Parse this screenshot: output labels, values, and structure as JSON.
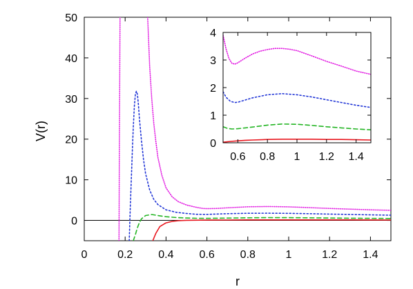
{
  "chart_data": [
    {
      "type": "line",
      "title": "",
      "xlabel": "r",
      "ylabel": "V(r)",
      "xlim": [
        0,
        1.5
      ],
      "ylim": [
        -5,
        50
      ],
      "x_ticks": [
        0,
        0.2,
        0.4,
        0.6,
        0.8,
        1,
        1.2,
        1.4
      ],
      "x_tick_labels": [
        "0",
        "0.2",
        "0.4",
        "0.6",
        "0.8",
        "1",
        "1.2",
        "1.4"
      ],
      "y_ticks": [
        0,
        10,
        20,
        30,
        40,
        50
      ],
      "y_tick_labels": [
        "0",
        "10",
        "20",
        "30",
        "40",
        "50"
      ],
      "reference_line_y": 0,
      "grid": false,
      "series": [
        {
          "color": "#e8141c",
          "dash": "solid",
          "x": [
            0.335,
            0.35,
            0.37,
            0.4,
            0.43,
            0.46,
            0.5,
            0.6,
            0.7,
            0.8,
            0.9,
            1.0,
            1.1,
            1.2,
            1.3,
            1.4,
            1.5
          ],
          "y": [
            -5,
            -3.2,
            -1.5,
            -0.6,
            -0.25,
            -0.08,
            0.02,
            0.08,
            0.1,
            0.12,
            0.13,
            0.13,
            0.13,
            0.12,
            0.12,
            0.11,
            0.1
          ]
        },
        {
          "color": "#22b422",
          "dash": "6,4",
          "x": [
            0.24,
            0.25,
            0.26,
            0.27,
            0.28,
            0.3,
            0.33,
            0.36,
            0.4,
            0.45,
            0.5,
            0.55,
            0.6,
            0.7,
            0.8,
            0.9,
            1.0,
            1.1,
            1.2,
            1.3,
            1.4,
            1.5
          ],
          "y": [
            -5,
            -3.5,
            -1.8,
            -0.5,
            0.4,
            1.2,
            1.45,
            1.2,
            0.9,
            0.7,
            0.58,
            0.52,
            0.5,
            0.56,
            0.64,
            0.68,
            0.67,
            0.63,
            0.58,
            0.54,
            0.5,
            0.47
          ]
        },
        {
          "color": "#1f34d6",
          "dash": "2,3",
          "x": [
            0.22,
            0.225,
            0.23,
            0.235,
            0.24,
            0.245,
            0.25,
            0.255,
            0.26,
            0.265,
            0.27,
            0.28,
            0.29,
            0.3,
            0.32,
            0.34,
            0.36,
            0.4,
            0.45,
            0.5,
            0.55,
            0.6,
            0.7,
            0.8,
            0.9,
            1.0,
            1.1,
            1.2,
            1.3,
            1.4,
            1.5
          ],
          "y": [
            -5,
            3,
            10,
            17,
            23,
            28,
            31,
            31.8,
            31,
            28.5,
            25,
            19.5,
            15,
            11.5,
            7.5,
            5.2,
            3.9,
            2.6,
            2.0,
            1.7,
            1.5,
            1.48,
            1.65,
            1.76,
            1.78,
            1.74,
            1.66,
            1.56,
            1.46,
            1.36,
            1.28
          ]
        },
        {
          "color": "#e21ee2",
          "dash": "1,2",
          "x": [
            0.17,
            0.172,
            0.175
          ],
          "y": [
            -5,
            20,
            50
          ],
          "x2": [
            0.31,
            0.32,
            0.33,
            0.34,
            0.35,
            0.36,
            0.38,
            0.4,
            0.43,
            0.46,
            0.5,
            0.55,
            0.58,
            0.6,
            0.65,
            0.7,
            0.8,
            0.9,
            1.0,
            1.1,
            1.2,
            1.3,
            1.4,
            1.5
          ],
          "y2": [
            50,
            38,
            30,
            24,
            19.5,
            15.5,
            11,
            8,
            5.8,
            4.6,
            3.8,
            3.2,
            2.95,
            2.9,
            2.95,
            3.1,
            3.35,
            3.42,
            3.33,
            3.15,
            2.95,
            2.78,
            2.6,
            2.48
          ]
        }
      ]
    },
    {
      "type": "line",
      "title": "",
      "xlabel": "",
      "ylabel": "",
      "xlim": [
        0.5,
        1.5
      ],
      "ylim": [
        0,
        4
      ],
      "x_ticks": [
        0.6,
        0.8,
        1,
        1.2,
        1.4
      ],
      "x_tick_labels": [
        "0.6",
        "0.8",
        "1",
        "1.2",
        "1.4"
      ],
      "y_ticks": [
        0,
        1,
        2,
        3,
        4
      ],
      "y_tick_labels": [
        "0",
        "1",
        "2",
        "3",
        "4"
      ],
      "grid": false,
      "series": [
        {
          "color": "#e8141c",
          "dash": "solid",
          "x": [
            0.5,
            0.55,
            0.6,
            0.65,
            0.7,
            0.8,
            0.9,
            1.0,
            1.1,
            1.2,
            1.3,
            1.4,
            1.5
          ],
          "y": [
            0.02,
            0.05,
            0.07,
            0.09,
            0.1,
            0.12,
            0.13,
            0.13,
            0.13,
            0.12,
            0.12,
            0.11,
            0.1
          ]
        },
        {
          "color": "#22b422",
          "dash": "6,4",
          "x": [
            0.5,
            0.53,
            0.56,
            0.6,
            0.65,
            0.7,
            0.8,
            0.9,
            1.0,
            1.1,
            1.2,
            1.3,
            1.4,
            1.5
          ],
          "y": [
            0.58,
            0.52,
            0.5,
            0.51,
            0.54,
            0.57,
            0.64,
            0.68,
            0.67,
            0.63,
            0.58,
            0.54,
            0.5,
            0.47
          ]
        },
        {
          "color": "#1f34d6",
          "dash": "2,3",
          "x": [
            0.5,
            0.52,
            0.55,
            0.58,
            0.6,
            0.65,
            0.7,
            0.8,
            0.9,
            1.0,
            1.1,
            1.2,
            1.3,
            1.4,
            1.5
          ],
          "y": [
            1.85,
            1.65,
            1.5,
            1.46,
            1.47,
            1.55,
            1.63,
            1.74,
            1.78,
            1.74,
            1.66,
            1.56,
            1.46,
            1.36,
            1.28
          ]
        },
        {
          "color": "#e21ee2",
          "dash": "1,2",
          "x": [
            0.5,
            0.52,
            0.54,
            0.56,
            0.58,
            0.6,
            0.65,
            0.7,
            0.75,
            0.8,
            0.85,
            0.9,
            0.95,
            1.0,
            1.1,
            1.2,
            1.3,
            1.4,
            1.5
          ],
          "y": [
            3.9,
            3.4,
            3.05,
            2.88,
            2.85,
            2.9,
            3.07,
            3.22,
            3.32,
            3.38,
            3.42,
            3.42,
            3.39,
            3.34,
            3.15,
            2.95,
            2.78,
            2.6,
            2.48
          ]
        }
      ]
    }
  ]
}
